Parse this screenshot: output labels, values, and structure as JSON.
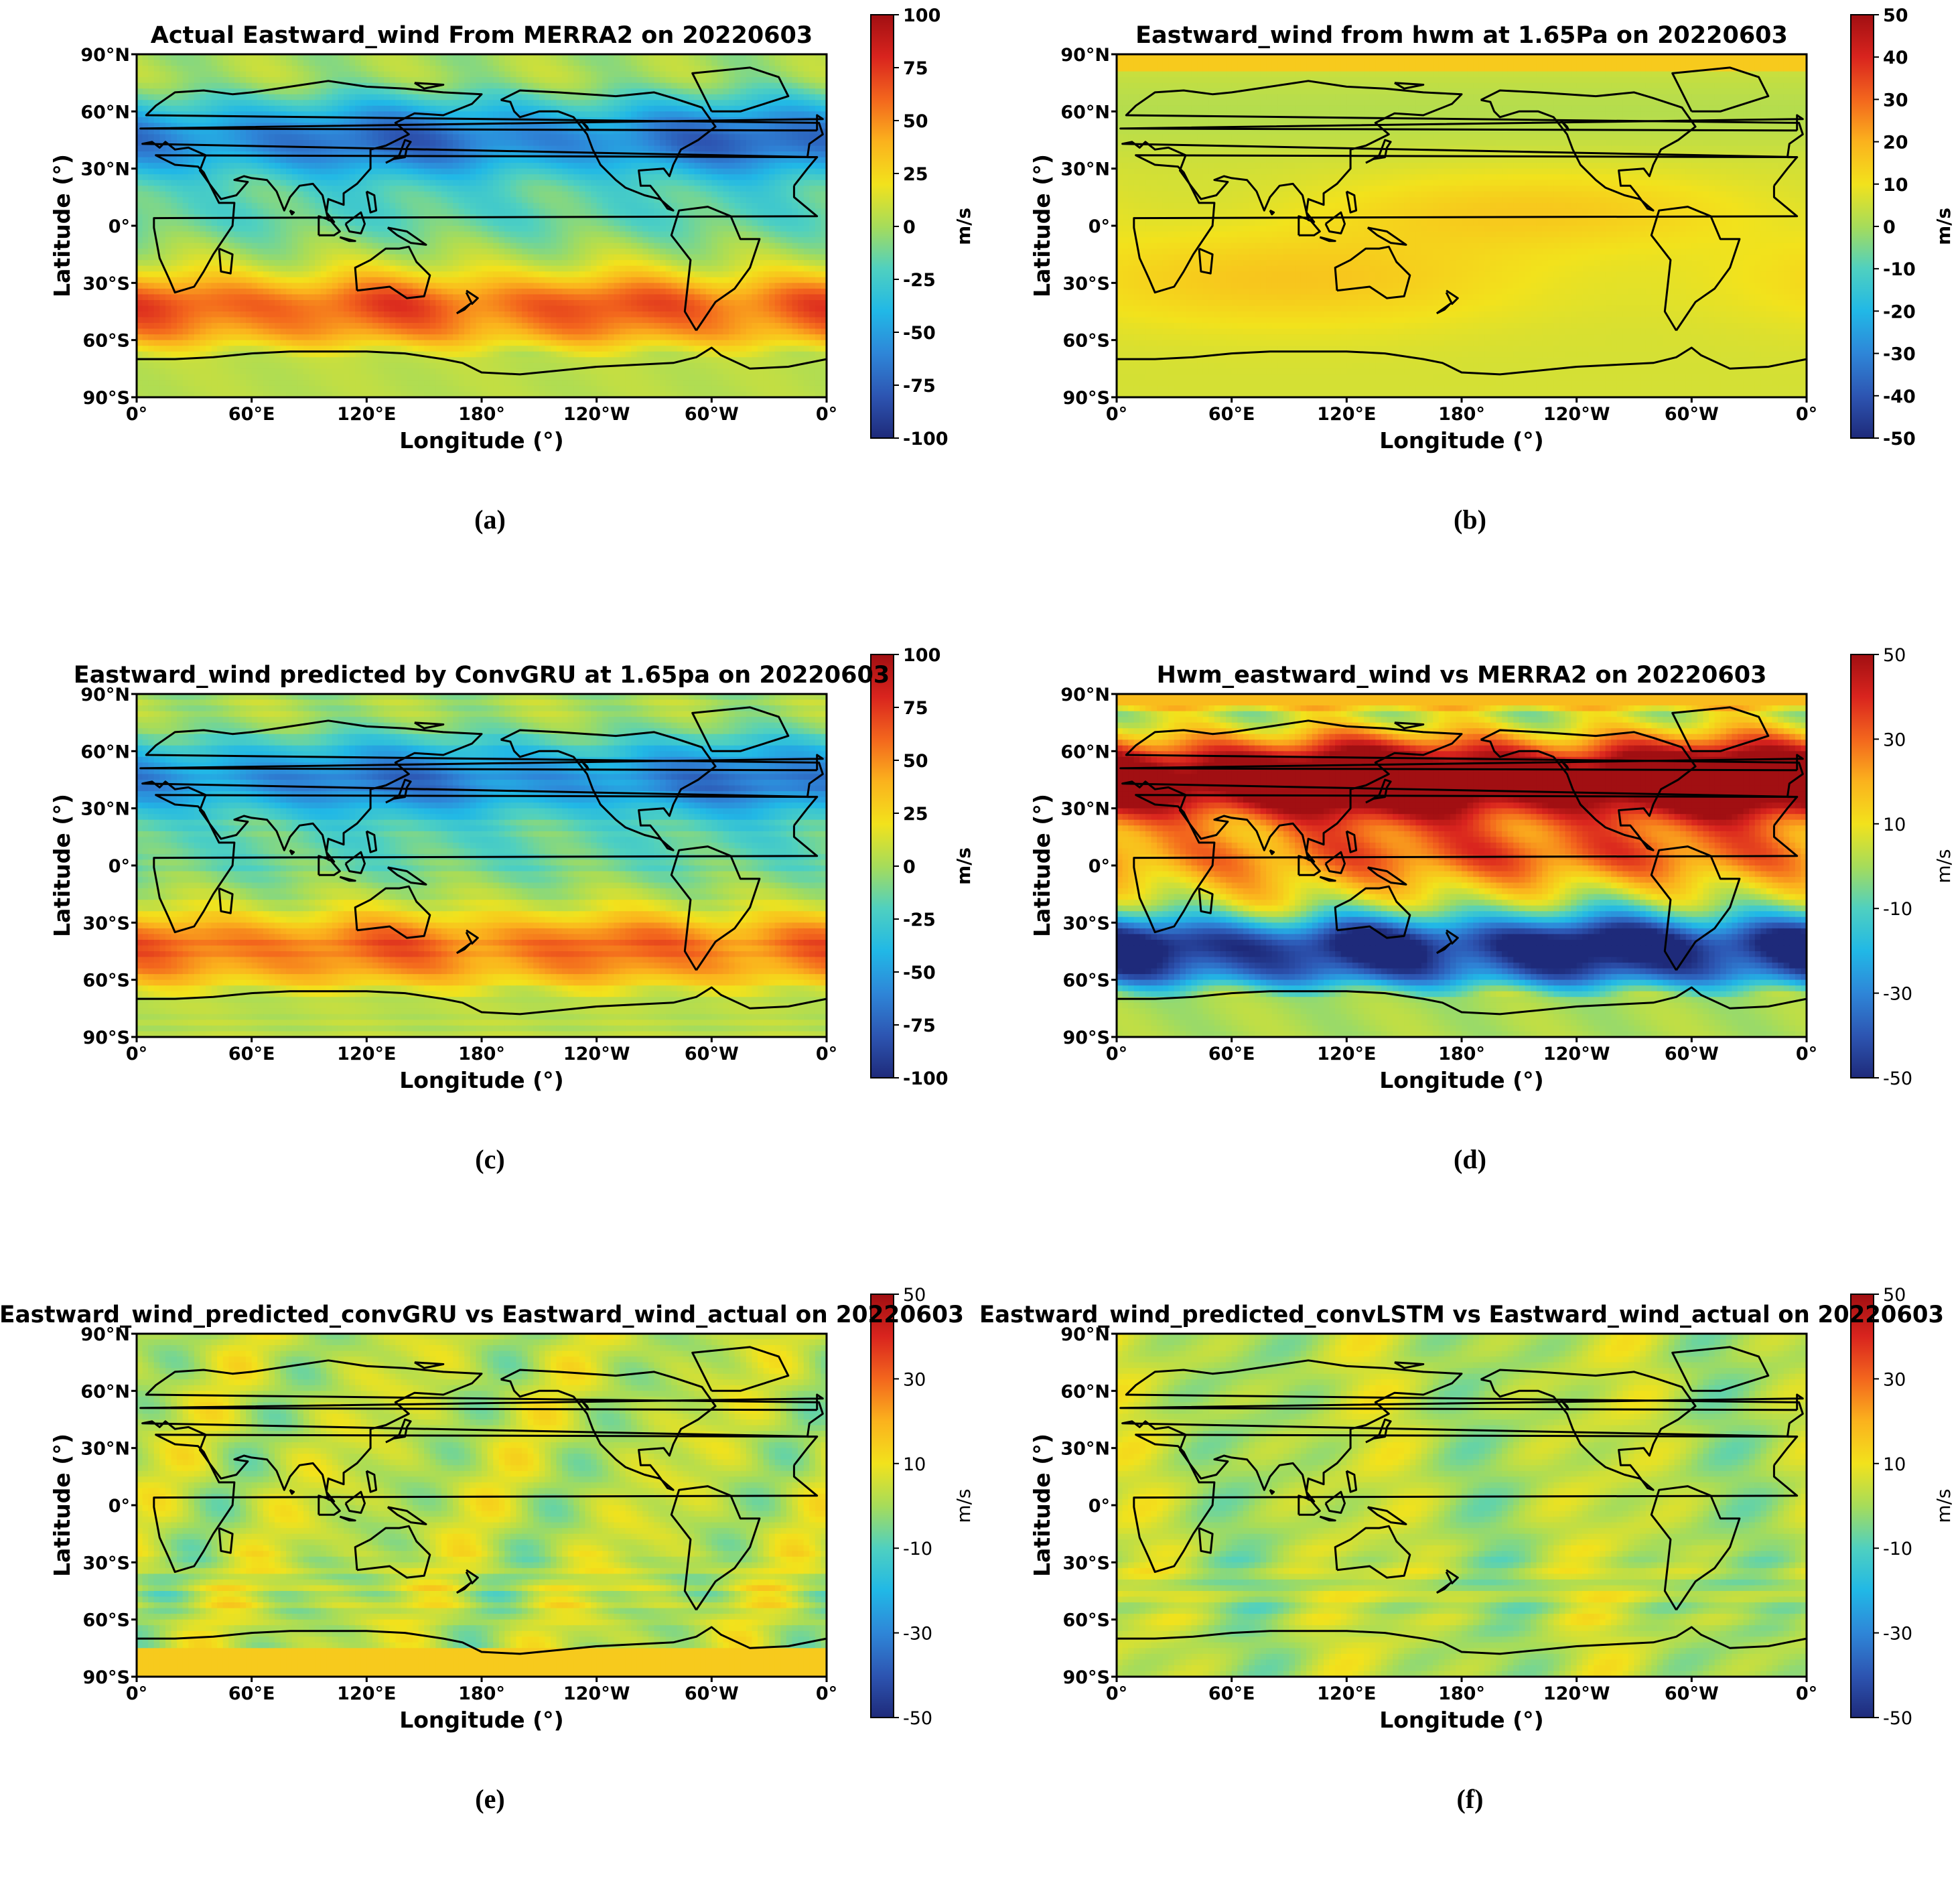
{
  "chart_data": [
    {
      "id": "a",
      "type": "heatmap",
      "caption": "(a)",
      "title": "Actual Eastward_wind From MERRA2 on 20220603",
      "xlabel": "Longitude (°)",
      "ylabel": "Latitude (°)",
      "xticks": [
        "0°",
        "60°E",
        "120°E",
        "180°",
        "120°W",
        "60°W",
        "0°"
      ],
      "yticks": [
        "90°N",
        "60°N",
        "30°N",
        "0°",
        "30°S",
        "60°S",
        "90°S"
      ],
      "colorbar": {
        "min": -100,
        "max": 100,
        "unit": "m/s",
        "ticks": [
          "100",
          "75",
          "50",
          "25",
          "0",
          "-25",
          "-50",
          "-75",
          "-100"
        ]
      },
      "field_model": "merra2_actual",
      "scale_hint": 100
    },
    {
      "id": "b",
      "type": "heatmap",
      "caption": "(b)",
      "title": "Eastward_wind from hwm at 1.65Pa on 20220603",
      "xlabel": "Longitude (°)",
      "ylabel": "Latitude (°)",
      "xticks": [
        "0°",
        "60°E",
        "120°E",
        "180°",
        "120°W",
        "60°W",
        "0°"
      ],
      "yticks": [
        "90°N",
        "60°N",
        "30°N",
        "0°",
        "30°S",
        "60°S",
        "90°S"
      ],
      "colorbar": {
        "min": -50,
        "max": 50,
        "unit": "m/s",
        "ticks": [
          "50",
          "40",
          "30",
          "20",
          "10",
          "0",
          "-10",
          "-20",
          "-30",
          "-40",
          "-50"
        ]
      },
      "field_model": "hwm",
      "scale_hint": 50
    },
    {
      "id": "c",
      "type": "heatmap",
      "caption": "(c)",
      "title": "Eastward_wind predicted by ConvGRU at 1.65pa on 20220603",
      "xlabel": "Longitude (°)",
      "ylabel": "Latitude (°)",
      "xticks": [
        "0°",
        "60°E",
        "120°E",
        "180°",
        "120°W",
        "60°W",
        "0°"
      ],
      "yticks": [
        "90°N",
        "60°N",
        "30°N",
        "0°",
        "30°S",
        "60°S",
        "90°S"
      ],
      "colorbar": {
        "min": -100,
        "max": 100,
        "unit": "m/s",
        "ticks": [
          "100",
          "75",
          "50",
          "25",
          "0",
          "-25",
          "-50",
          "-75",
          "-100"
        ]
      },
      "field_model": "convgru_pred",
      "scale_hint": 100
    },
    {
      "id": "d",
      "type": "heatmap",
      "caption": "(d)",
      "title": "Hwm_eastward_wind vs MERRA2 on 20220603",
      "xlabel": "Longitude (°)",
      "ylabel": "Latitude (°)",
      "xticks": [
        "0°",
        "60°E",
        "120°E",
        "180°",
        "120°W",
        "60°W",
        "0°"
      ],
      "yticks": [
        "90°N",
        "60°N",
        "30°N",
        "0°",
        "30°S",
        "60°S",
        "90°S"
      ],
      "colorbar": {
        "min": -50,
        "max": 50,
        "unit": "m/s",
        "ticks": [
          "50",
          "30",
          "10",
          "-10",
          "-30",
          "-50"
        ],
        "light_labels": true
      },
      "field_model": "hwm_minus_merra",
      "scale_hint": 50
    },
    {
      "id": "e",
      "type": "heatmap",
      "caption": "(e)",
      "title": "Eastward_wind_predicted_convGRU vs Eastward_wind_actual on 20220603",
      "xlabel": "Longitude (°)",
      "ylabel": "Latitude (°)",
      "xticks": [
        "0°",
        "60°E",
        "120°E",
        "180°",
        "120°W",
        "60°W",
        "0°"
      ],
      "yticks": [
        "90°N",
        "60°N",
        "30°N",
        "0°",
        "30°S",
        "60°S",
        "90°S"
      ],
      "colorbar": {
        "min": -50,
        "max": 50,
        "unit": "m/s",
        "ticks": [
          "50",
          "30",
          "10",
          "-10",
          "-30",
          "-50"
        ],
        "light_labels": true
      },
      "field_model": "convgru_error",
      "scale_hint": 50
    },
    {
      "id": "f",
      "type": "heatmap",
      "caption": "(f)",
      "title": "Eastward_wind_predicted_convLSTM vs Eastward_wind_actual on 20220603",
      "xlabel": "Longitude (°)",
      "ylabel": "Latitude (°)",
      "xticks": [
        "0°",
        "60°E",
        "120°E",
        "180°",
        "120°W",
        "60°W",
        "0°"
      ],
      "yticks": [
        "90°N",
        "60°N",
        "30°N",
        "0°",
        "30°S",
        "60°S",
        "90°S"
      ],
      "colorbar": {
        "min": -50,
        "max": 50,
        "unit": "m/s",
        "ticks": [
          "50",
          "30",
          "10",
          "-10",
          "-30",
          "-50"
        ],
        "light_labels": true
      },
      "field_model": "convlstm_error",
      "scale_hint": 50
    }
  ],
  "colormap": [
    "#1e2a7a",
    "#2d55b2",
    "#2e86d8",
    "#21b8e6",
    "#4fd0c0",
    "#a6dc5a",
    "#f2e21c",
    "#fbb21d",
    "#f3661d",
    "#d9241e",
    "#a10f12"
  ]
}
